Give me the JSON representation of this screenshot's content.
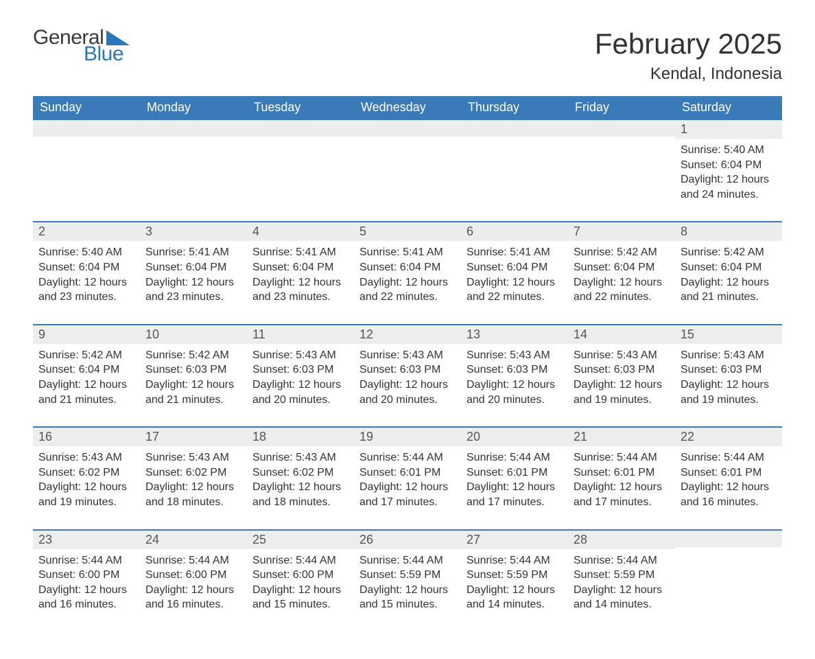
{
  "brand": {
    "line1": "General",
    "line2": "Blue"
  },
  "title": "February 2025",
  "location": "Kendal, Indonesia",
  "colors": {
    "header_bg": "#3a7ab8",
    "header_text": "#ffffff",
    "strip_bg": "#ededed",
    "strip_border": "#3a7ab8",
    "body_text": "#333333",
    "brand_blue": "#2a77bb",
    "page_bg": "#ffffff"
  },
  "days_of_week": [
    "Sunday",
    "Monday",
    "Tuesday",
    "Wednesday",
    "Thursday",
    "Friday",
    "Saturday"
  ],
  "weeks": [
    [
      {
        "n": "",
        "sunrise": "",
        "sunset": "",
        "daylight": ""
      },
      {
        "n": "",
        "sunrise": "",
        "sunset": "",
        "daylight": ""
      },
      {
        "n": "",
        "sunrise": "",
        "sunset": "",
        "daylight": ""
      },
      {
        "n": "",
        "sunrise": "",
        "sunset": "",
        "daylight": ""
      },
      {
        "n": "",
        "sunrise": "",
        "sunset": "",
        "daylight": ""
      },
      {
        "n": "",
        "sunrise": "",
        "sunset": "",
        "daylight": ""
      },
      {
        "n": "1",
        "sunrise": "Sunrise: 5:40 AM",
        "sunset": "Sunset: 6:04 PM",
        "daylight": "Daylight: 12 hours and 24 minutes."
      }
    ],
    [
      {
        "n": "2",
        "sunrise": "Sunrise: 5:40 AM",
        "sunset": "Sunset: 6:04 PM",
        "daylight": "Daylight: 12 hours and 23 minutes."
      },
      {
        "n": "3",
        "sunrise": "Sunrise: 5:41 AM",
        "sunset": "Sunset: 6:04 PM",
        "daylight": "Daylight: 12 hours and 23 minutes."
      },
      {
        "n": "4",
        "sunrise": "Sunrise: 5:41 AM",
        "sunset": "Sunset: 6:04 PM",
        "daylight": "Daylight: 12 hours and 23 minutes."
      },
      {
        "n": "5",
        "sunrise": "Sunrise: 5:41 AM",
        "sunset": "Sunset: 6:04 PM",
        "daylight": "Daylight: 12 hours and 22 minutes."
      },
      {
        "n": "6",
        "sunrise": "Sunrise: 5:41 AM",
        "sunset": "Sunset: 6:04 PM",
        "daylight": "Daylight: 12 hours and 22 minutes."
      },
      {
        "n": "7",
        "sunrise": "Sunrise: 5:42 AM",
        "sunset": "Sunset: 6:04 PM",
        "daylight": "Daylight: 12 hours and 22 minutes."
      },
      {
        "n": "8",
        "sunrise": "Sunrise: 5:42 AM",
        "sunset": "Sunset: 6:04 PM",
        "daylight": "Daylight: 12 hours and 21 minutes."
      }
    ],
    [
      {
        "n": "9",
        "sunrise": "Sunrise: 5:42 AM",
        "sunset": "Sunset: 6:04 PM",
        "daylight": "Daylight: 12 hours and 21 minutes."
      },
      {
        "n": "10",
        "sunrise": "Sunrise: 5:42 AM",
        "sunset": "Sunset: 6:03 PM",
        "daylight": "Daylight: 12 hours and 21 minutes."
      },
      {
        "n": "11",
        "sunrise": "Sunrise: 5:43 AM",
        "sunset": "Sunset: 6:03 PM",
        "daylight": "Daylight: 12 hours and 20 minutes."
      },
      {
        "n": "12",
        "sunrise": "Sunrise: 5:43 AM",
        "sunset": "Sunset: 6:03 PM",
        "daylight": "Daylight: 12 hours and 20 minutes."
      },
      {
        "n": "13",
        "sunrise": "Sunrise: 5:43 AM",
        "sunset": "Sunset: 6:03 PM",
        "daylight": "Daylight: 12 hours and 20 minutes."
      },
      {
        "n": "14",
        "sunrise": "Sunrise: 5:43 AM",
        "sunset": "Sunset: 6:03 PM",
        "daylight": "Daylight: 12 hours and 19 minutes."
      },
      {
        "n": "15",
        "sunrise": "Sunrise: 5:43 AM",
        "sunset": "Sunset: 6:03 PM",
        "daylight": "Daylight: 12 hours and 19 minutes."
      }
    ],
    [
      {
        "n": "16",
        "sunrise": "Sunrise: 5:43 AM",
        "sunset": "Sunset: 6:02 PM",
        "daylight": "Daylight: 12 hours and 19 minutes."
      },
      {
        "n": "17",
        "sunrise": "Sunrise: 5:43 AM",
        "sunset": "Sunset: 6:02 PM",
        "daylight": "Daylight: 12 hours and 18 minutes."
      },
      {
        "n": "18",
        "sunrise": "Sunrise: 5:43 AM",
        "sunset": "Sunset: 6:02 PM",
        "daylight": "Daylight: 12 hours and 18 minutes."
      },
      {
        "n": "19",
        "sunrise": "Sunrise: 5:44 AM",
        "sunset": "Sunset: 6:01 PM",
        "daylight": "Daylight: 12 hours and 17 minutes."
      },
      {
        "n": "20",
        "sunrise": "Sunrise: 5:44 AM",
        "sunset": "Sunset: 6:01 PM",
        "daylight": "Daylight: 12 hours and 17 minutes."
      },
      {
        "n": "21",
        "sunrise": "Sunrise: 5:44 AM",
        "sunset": "Sunset: 6:01 PM",
        "daylight": "Daylight: 12 hours and 17 minutes."
      },
      {
        "n": "22",
        "sunrise": "Sunrise: 5:44 AM",
        "sunset": "Sunset: 6:01 PM",
        "daylight": "Daylight: 12 hours and 16 minutes."
      }
    ],
    [
      {
        "n": "23",
        "sunrise": "Sunrise: 5:44 AM",
        "sunset": "Sunset: 6:00 PM",
        "daylight": "Daylight: 12 hours and 16 minutes."
      },
      {
        "n": "24",
        "sunrise": "Sunrise: 5:44 AM",
        "sunset": "Sunset: 6:00 PM",
        "daylight": "Daylight: 12 hours and 16 minutes."
      },
      {
        "n": "25",
        "sunrise": "Sunrise: 5:44 AM",
        "sunset": "Sunset: 6:00 PM",
        "daylight": "Daylight: 12 hours and 15 minutes."
      },
      {
        "n": "26",
        "sunrise": "Sunrise: 5:44 AM",
        "sunset": "Sunset: 5:59 PM",
        "daylight": "Daylight: 12 hours and 15 minutes."
      },
      {
        "n": "27",
        "sunrise": "Sunrise: 5:44 AM",
        "sunset": "Sunset: 5:59 PM",
        "daylight": "Daylight: 12 hours and 14 minutes."
      },
      {
        "n": "28",
        "sunrise": "Sunrise: 5:44 AM",
        "sunset": "Sunset: 5:59 PM",
        "daylight": "Daylight: 12 hours and 14 minutes."
      },
      {
        "n": "",
        "sunrise": "",
        "sunset": "",
        "daylight": ""
      }
    ]
  ]
}
